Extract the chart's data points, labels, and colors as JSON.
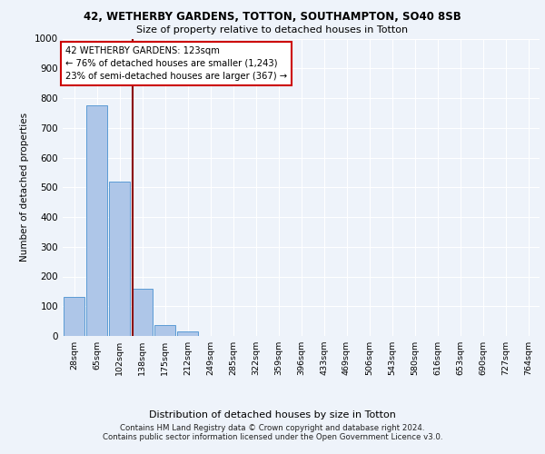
{
  "title1": "42, WETHERBY GARDENS, TOTTON, SOUTHAMPTON, SO40 8SB",
  "title2": "Size of property relative to detached houses in Totton",
  "xlabel": "Distribution of detached houses by size in Totton",
  "ylabel": "Number of detached properties",
  "bar_labels": [
    "28sqm",
    "65sqm",
    "102sqm",
    "138sqm",
    "175sqm",
    "212sqm",
    "249sqm",
    "285sqm",
    "322sqm",
    "359sqm",
    "396sqm",
    "433sqm",
    "469sqm",
    "506sqm",
    "543sqm",
    "580sqm",
    "616sqm",
    "653sqm",
    "690sqm",
    "727sqm",
    "764sqm"
  ],
  "bar_heights": [
    130,
    775,
    520,
    160,
    37,
    15,
    0,
    0,
    0,
    0,
    0,
    0,
    0,
    0,
    0,
    0,
    0,
    0,
    0,
    0,
    0
  ],
  "bar_color": "#aec6e8",
  "bar_edgecolor": "#5b9bd5",
  "ylim": [
    0,
    1000
  ],
  "yticks": [
    0,
    100,
    200,
    300,
    400,
    500,
    600,
    700,
    800,
    900,
    1000
  ],
  "redline_x": 2.583,
  "annotation_text": "42 WETHERBY GARDENS: 123sqm\n← 76% of detached houses are smaller (1,243)\n23% of semi-detached houses are larger (367) →",
  "footer1": "Contains HM Land Registry data © Crown copyright and database right 2024.",
  "footer2": "Contains public sector information licensed under the Open Government Licence v3.0.",
  "bg_color": "#eef3fa",
  "plot_bg_color": "#eef3fa"
}
